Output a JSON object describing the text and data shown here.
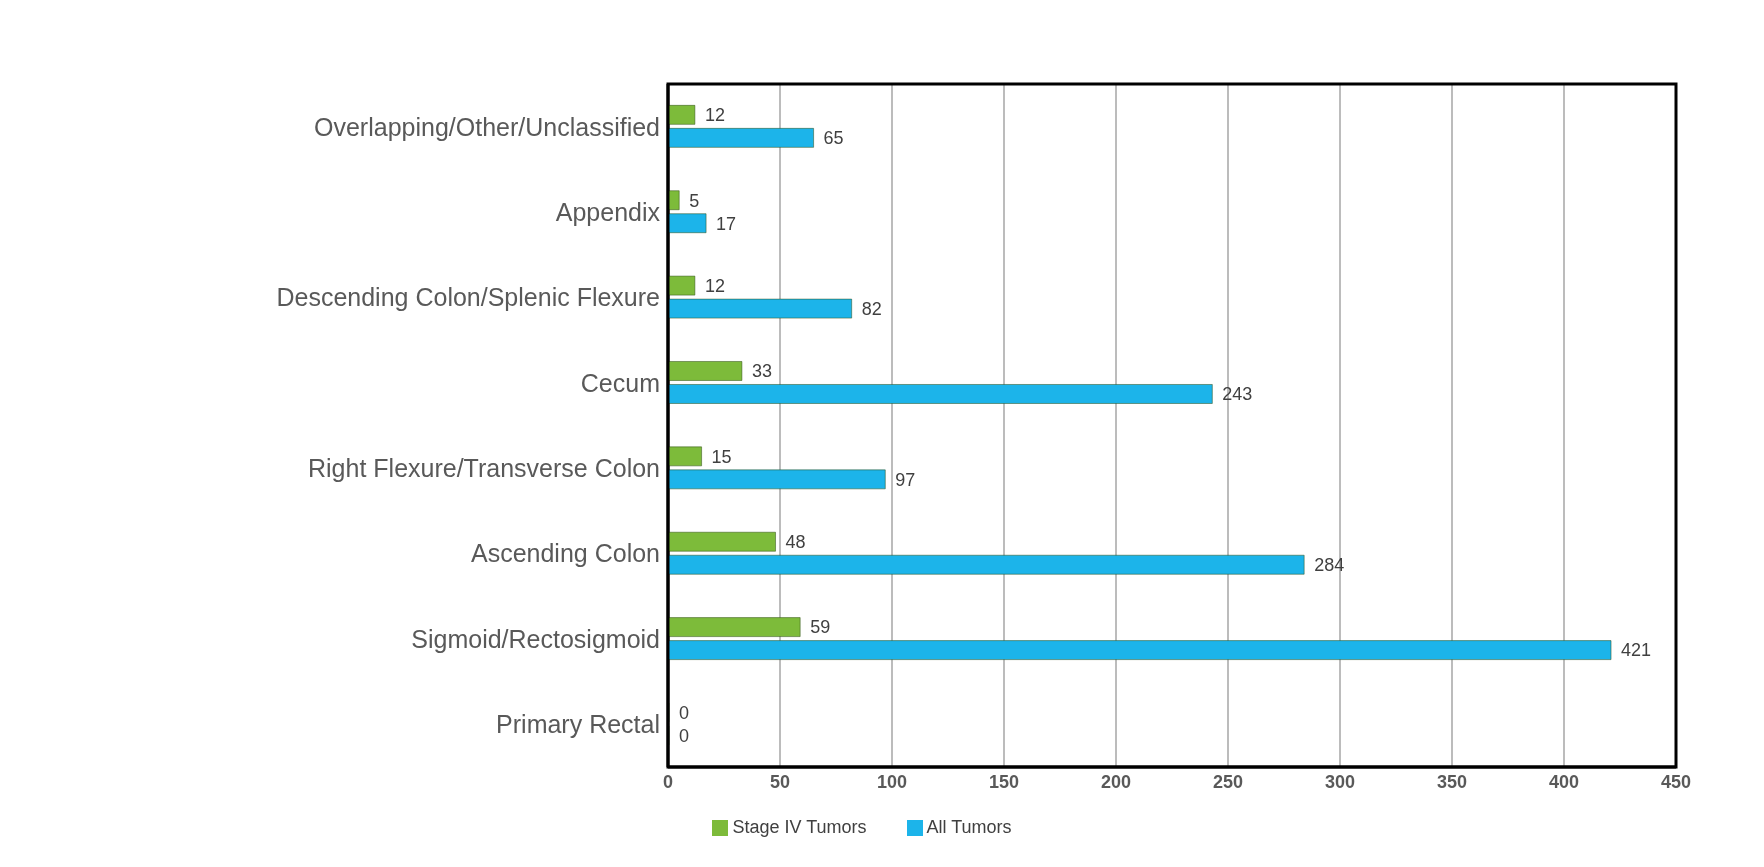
{
  "chart_data": {
    "type": "bar",
    "orientation": "horizontal",
    "categories": [
      "Overlapping/Other/Unclassified",
      "Appendix",
      "Descending Colon/Splenic Flexure",
      "Cecum",
      "Right Flexure/Transverse Colon",
      "Ascending Colon",
      "Sigmoid/Rectosigmoid",
      "Primary Rectal"
    ],
    "series": [
      {
        "name": "Stage IV Tumors",
        "color": "#7dbb3a",
        "values": [
          12,
          5,
          12,
          33,
          15,
          48,
          59,
          0
        ]
      },
      {
        "name": "All Tumors",
        "color": "#1cb4ea",
        "values": [
          65,
          17,
          82,
          243,
          97,
          284,
          421,
          0
        ]
      }
    ],
    "xlim": [
      0,
      450
    ],
    "xticks": [
      0,
      50,
      100,
      150,
      200,
      250,
      300,
      350,
      400,
      450
    ],
    "grid": "x",
    "legend": "bottom",
    "data_labels": true
  }
}
